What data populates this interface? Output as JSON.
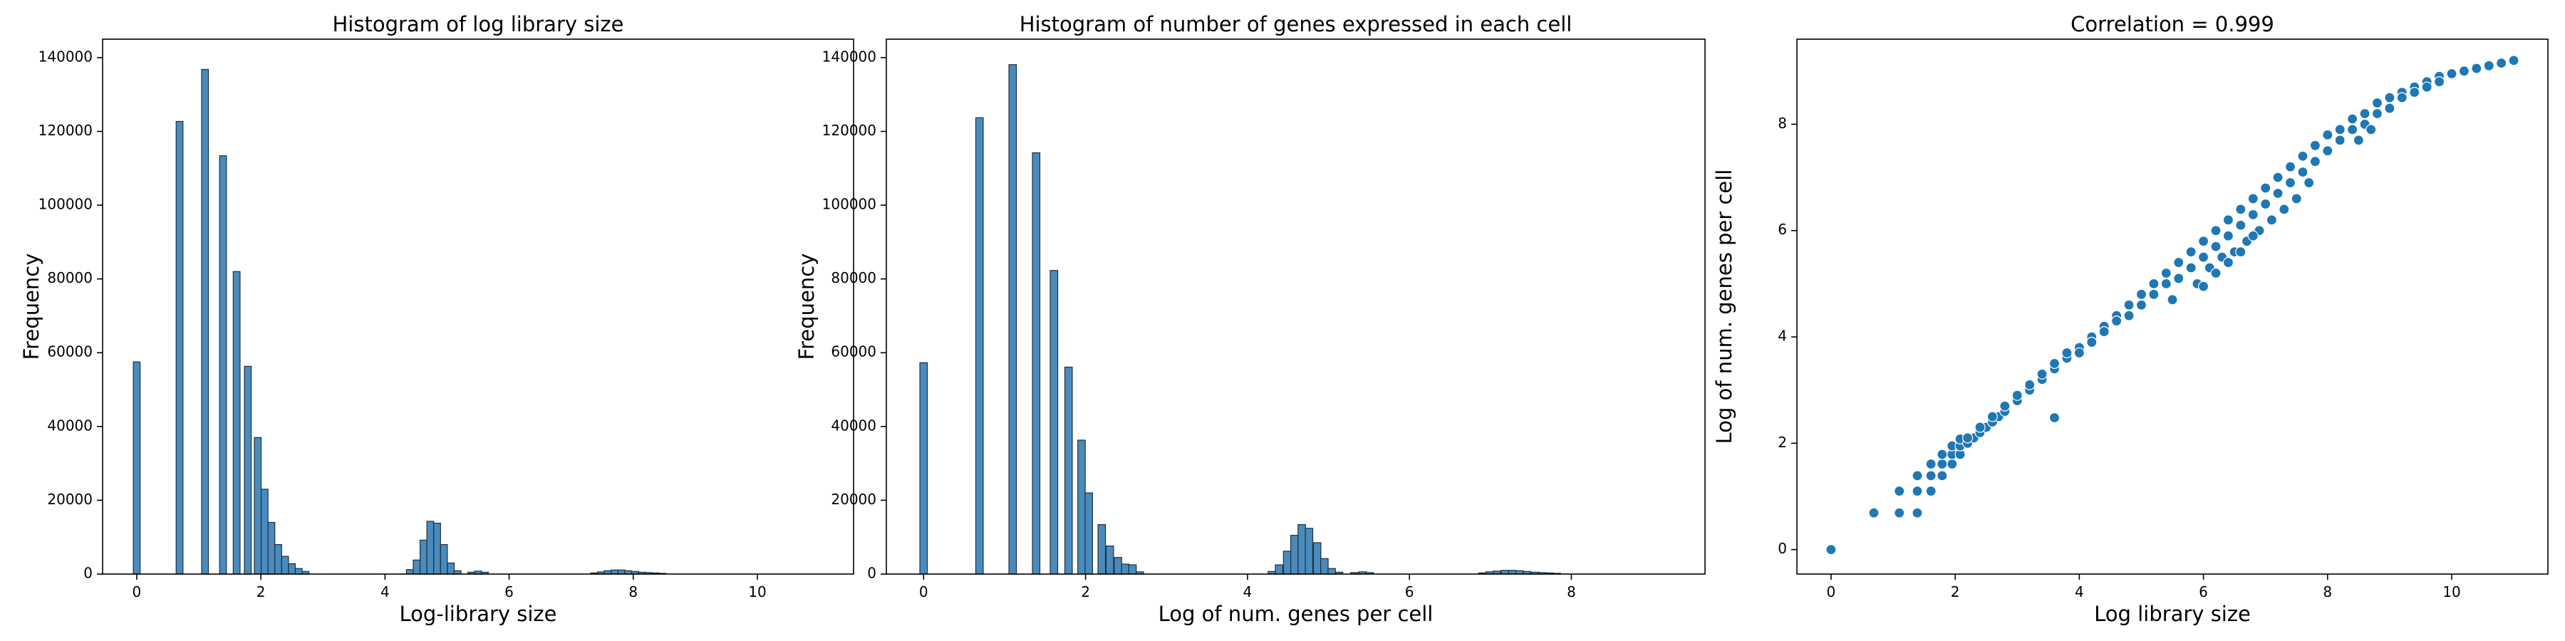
{
  "chart_data": [
    {
      "type": "histogram",
      "title": "Histogram of log library size",
      "xlabel": "Log-library size",
      "ylabel": "Frequency",
      "xlim": [
        -0.55,
        11.55
      ],
      "ylim": [
        0,
        145000
      ],
      "xticks": [
        0,
        2,
        4,
        6,
        8,
        10
      ],
      "yticks": [
        0,
        20000,
        40000,
        60000,
        80000,
        100000,
        120000,
        140000
      ],
      "bin_width": 0.11,
      "color": "#4a8bbd",
      "bins": [
        {
          "x": 0.0,
          "count": 57500
        },
        {
          "x": 0.69,
          "count": 122700
        },
        {
          "x": 1.1,
          "count": 136800
        },
        {
          "x": 1.39,
          "count": 113400
        },
        {
          "x": 1.61,
          "count": 82000
        },
        {
          "x": 1.79,
          "count": 56300
        },
        {
          "x": 1.95,
          "count": 37000
        },
        {
          "x": 2.06,
          "count": 23000
        },
        {
          "x": 2.17,
          "count": 14000
        },
        {
          "x": 2.28,
          "count": 8000
        },
        {
          "x": 2.39,
          "count": 4800
        },
        {
          "x": 2.5,
          "count": 2800
        },
        {
          "x": 2.61,
          "count": 1500
        },
        {
          "x": 2.72,
          "count": 700
        },
        {
          "x": 4.4,
          "count": 1200
        },
        {
          "x": 4.51,
          "count": 3800
        },
        {
          "x": 4.62,
          "count": 9200
        },
        {
          "x": 4.73,
          "count": 14300
        },
        {
          "x": 4.84,
          "count": 13800
        },
        {
          "x": 4.95,
          "count": 8000
        },
        {
          "x": 5.06,
          "count": 3000
        },
        {
          "x": 5.17,
          "count": 900
        },
        {
          "x": 5.39,
          "count": 500
        },
        {
          "x": 5.5,
          "count": 800
        },
        {
          "x": 5.61,
          "count": 500
        },
        {
          "x": 7.37,
          "count": 300
        },
        {
          "x": 7.48,
          "count": 600
        },
        {
          "x": 7.59,
          "count": 900
        },
        {
          "x": 7.7,
          "count": 1100
        },
        {
          "x": 7.81,
          "count": 1100
        },
        {
          "x": 7.92,
          "count": 900
        },
        {
          "x": 8.03,
          "count": 700
        },
        {
          "x": 8.14,
          "count": 500
        },
        {
          "x": 8.25,
          "count": 400
        },
        {
          "x": 8.36,
          "count": 300
        },
        {
          "x": 8.47,
          "count": 200
        }
      ]
    },
    {
      "type": "histogram",
      "title": "Histogram of number of genes expressed in each cell",
      "xlabel": "Log of num. genes per cell",
      "ylabel": "Frequency",
      "xlim": [
        -0.46,
        9.65
      ],
      "ylim": [
        0,
        145000
      ],
      "xticks": [
        0,
        2,
        4,
        6,
        8
      ],
      "yticks": [
        0,
        20000,
        40000,
        60000,
        80000,
        100000,
        120000,
        140000
      ],
      "bin_width": 0.092,
      "color": "#4a8bbd",
      "bins": [
        {
          "x": 0.0,
          "count": 57300
        },
        {
          "x": 0.69,
          "count": 123700
        },
        {
          "x": 1.1,
          "count": 138100
        },
        {
          "x": 1.39,
          "count": 114200
        },
        {
          "x": 1.61,
          "count": 82300
        },
        {
          "x": 1.79,
          "count": 56100
        },
        {
          "x": 1.95,
          "count": 36300
        },
        {
          "x": 2.04,
          "count": 22000
        },
        {
          "x": 2.2,
          "count": 13400
        },
        {
          "x": 2.3,
          "count": 7600
        },
        {
          "x": 2.4,
          "count": 4500
        },
        {
          "x": 2.49,
          "count": 2700
        },
        {
          "x": 2.58,
          "count": 2500
        },
        {
          "x": 2.67,
          "count": 600
        },
        {
          "x": 4.3,
          "count": 700
        },
        {
          "x": 4.39,
          "count": 2500
        },
        {
          "x": 4.49,
          "count": 6200
        },
        {
          "x": 4.58,
          "count": 10500
        },
        {
          "x": 4.67,
          "count": 13400
        },
        {
          "x": 4.76,
          "count": 12400
        },
        {
          "x": 4.86,
          "count": 8500
        },
        {
          "x": 4.95,
          "count": 4200
        },
        {
          "x": 5.04,
          "count": 1500
        },
        {
          "x": 5.13,
          "count": 500
        },
        {
          "x": 5.32,
          "count": 400
        },
        {
          "x": 5.42,
          "count": 600
        },
        {
          "x": 5.51,
          "count": 400
        },
        {
          "x": 6.9,
          "count": 300
        },
        {
          "x": 6.99,
          "count": 600
        },
        {
          "x": 7.08,
          "count": 800
        },
        {
          "x": 7.18,
          "count": 1000
        },
        {
          "x": 7.27,
          "count": 1000
        },
        {
          "x": 7.36,
          "count": 900
        },
        {
          "x": 7.45,
          "count": 700
        },
        {
          "x": 7.55,
          "count": 500
        },
        {
          "x": 7.64,
          "count": 400
        },
        {
          "x": 7.73,
          "count": 300
        },
        {
          "x": 7.82,
          "count": 200
        }
      ]
    },
    {
      "type": "scatter",
      "title": "Correlation = 0.999",
      "xlabel": "Log library size",
      "ylabel": "Log of num. genes per cell",
      "xlim": [
        -0.55,
        11.55
      ],
      "ylim": [
        -0.46,
        9.6
      ],
      "xticks": [
        0,
        2,
        4,
        6,
        8,
        10
      ],
      "yticks": [
        0,
        2,
        4,
        6,
        8
      ],
      "color": "#1f77b4",
      "points_description": "dense band following y ≈ x at low values, bending to y ≈ 9.1 at x ≈ 11",
      "points": [
        [
          0,
          0
        ],
        [
          0.69,
          0.69
        ],
        [
          1.1,
          0.69
        ],
        [
          1.1,
          1.1
        ],
        [
          1.39,
          0.69
        ],
        [
          1.39,
          1.1
        ],
        [
          1.39,
          1.39
        ],
        [
          1.61,
          1.1
        ],
        [
          1.61,
          1.39
        ],
        [
          1.61,
          1.61
        ],
        [
          1.79,
          1.39
        ],
        [
          1.79,
          1.61
        ],
        [
          1.79,
          1.79
        ],
        [
          1.95,
          1.61
        ],
        [
          1.95,
          1.79
        ],
        [
          1.95,
          1.95
        ],
        [
          2.08,
          1.79
        ],
        [
          2.08,
          1.95
        ],
        [
          2.08,
          2.08
        ],
        [
          3.6,
          2.48
        ],
        [
          2.2,
          2.0
        ],
        [
          2.3,
          2.1
        ],
        [
          2.4,
          2.2
        ],
        [
          2.5,
          2.3
        ],
        [
          2.6,
          2.4
        ],
        [
          2.7,
          2.5
        ],
        [
          2.8,
          2.6
        ],
        [
          2.2,
          2.1
        ],
        [
          2.4,
          2.3
        ],
        [
          2.6,
          2.5
        ],
        [
          2.8,
          2.7
        ],
        [
          3.0,
          2.8
        ],
        [
          3.0,
          2.9
        ],
        [
          3.2,
          3.0
        ],
        [
          3.2,
          3.1
        ],
        [
          3.4,
          3.2
        ],
        [
          3.4,
          3.3
        ],
        [
          3.6,
          3.4
        ],
        [
          3.6,
          3.5
        ],
        [
          3.8,
          3.6
        ],
        [
          3.8,
          3.7
        ],
        [
          4.0,
          3.8
        ],
        [
          4.0,
          3.7
        ],
        [
          4.2,
          4.0
        ],
        [
          4.2,
          3.9
        ],
        [
          4.4,
          4.2
        ],
        [
          4.4,
          4.1
        ],
        [
          4.6,
          4.4
        ],
        [
          4.6,
          4.3
        ],
        [
          4.8,
          4.6
        ],
        [
          4.8,
          4.4
        ],
        [
          5.0,
          4.8
        ],
        [
          5.0,
          4.6
        ],
        [
          5.2,
          5.0
        ],
        [
          5.2,
          4.8
        ],
        [
          5.4,
          5.2
        ],
        [
          5.4,
          5.0
        ],
        [
          5.6,
          5.4
        ],
        [
          5.6,
          5.1
        ],
        [
          5.8,
          5.6
        ],
        [
          5.8,
          5.3
        ],
        [
          6.0,
          5.8
        ],
        [
          6.0,
          5.5
        ],
        [
          6.2,
          6.0
        ],
        [
          6.2,
          5.7
        ],
        [
          6.4,
          6.2
        ],
        [
          6.4,
          5.9
        ],
        [
          6.6,
          6.4
        ],
        [
          6.6,
          6.1
        ],
        [
          6.8,
          6.6
        ],
        [
          6.8,
          6.3
        ],
        [
          7.0,
          6.8
        ],
        [
          7.0,
          6.5
        ],
        [
          7.2,
          7.0
        ],
        [
          7.2,
          6.7
        ],
        [
          7.4,
          7.2
        ],
        [
          7.4,
          6.9
        ],
        [
          7.6,
          7.4
        ],
        [
          7.6,
          7.1
        ],
        [
          7.8,
          7.6
        ],
        [
          7.8,
          7.3
        ],
        [
          8.0,
          7.8
        ],
        [
          8.0,
          7.5
        ],
        [
          8.2,
          7.9
        ],
        [
          8.2,
          7.7
        ],
        [
          8.4,
          8.1
        ],
        [
          8.4,
          7.9
        ],
        [
          8.6,
          8.2
        ],
        [
          8.6,
          8.0
        ],
        [
          8.8,
          8.4
        ],
        [
          8.8,
          8.2
        ],
        [
          9.0,
          8.5
        ],
        [
          9.0,
          8.3
        ],
        [
          9.2,
          8.6
        ],
        [
          9.2,
          8.5
        ],
        [
          9.4,
          8.7
        ],
        [
          9.4,
          8.6
        ],
        [
          9.6,
          8.8
        ],
        [
          9.6,
          8.7
        ],
        [
          9.8,
          8.9
        ],
        [
          9.8,
          8.8
        ],
        [
          10.0,
          8.95
        ],
        [
          10.2,
          9.0
        ],
        [
          10.4,
          9.05
        ],
        [
          10.6,
          9.1
        ],
        [
          10.8,
          9.15
        ],
        [
          11.0,
          9.2
        ],
        [
          5.5,
          4.7
        ],
        [
          5.9,
          5.0
        ],
        [
          6.1,
          5.3
        ],
        [
          6.3,
          5.5
        ],
        [
          6.5,
          5.6
        ],
        [
          6.7,
          5.8
        ],
        [
          6.9,
          6.0
        ],
        [
          7.1,
          6.2
        ],
        [
          7.3,
          6.4
        ],
        [
          6.0,
          4.95
        ],
        [
          6.2,
          5.2
        ],
        [
          6.4,
          5.4
        ],
        [
          6.6,
          5.6
        ],
        [
          6.8,
          5.9
        ],
        [
          7.5,
          6.6
        ],
        [
          7.7,
          6.9
        ],
        [
          8.5,
          7.7
        ],
        [
          8.7,
          7.9
        ]
      ]
    }
  ]
}
